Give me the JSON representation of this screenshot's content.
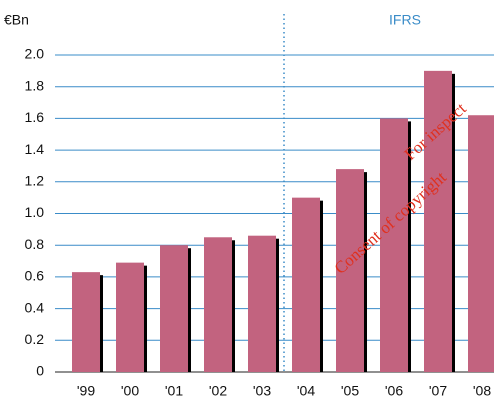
{
  "chart_data": {
    "type": "bar",
    "y_unit": "€Bn",
    "categories": [
      "'99",
      "'00",
      "'01",
      "'02",
      "'03",
      "'04",
      "'05",
      "'06",
      "'07",
      "'08"
    ],
    "values": [
      0.63,
      0.69,
      0.8,
      0.85,
      0.86,
      1.1,
      1.28,
      1.6,
      1.9,
      1.62
    ],
    "color": "#c2637f",
    "shadow_color": "#000000",
    "grid": true,
    "grid_color": "#3a8cc8",
    "ylim": [
      0,
      2.0
    ],
    "yticks": [
      0,
      0.2,
      0.4,
      0.6,
      0.8,
      {
        "value": 1.0,
        "label": "1.0"
      },
      1.2,
      1.4,
      1.6,
      1.8,
      {
        "value": 2.0,
        "label": "2.0"
      }
    ],
    "annotation": "IFRS",
    "watermark": [
      "For inspect",
      "Consent of copyright"
    ]
  }
}
